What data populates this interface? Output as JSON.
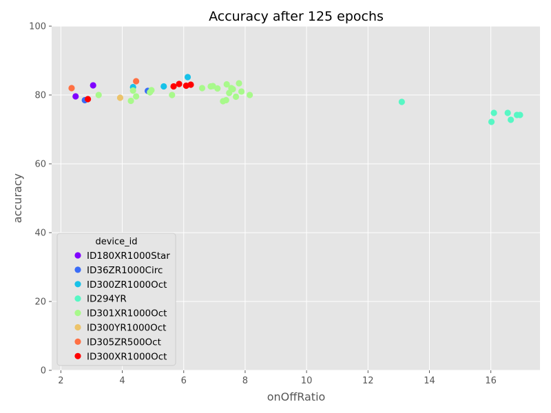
{
  "chart_data": {
    "type": "scatter",
    "title": "Accuracy after 125 epochs",
    "xlabel": "onOffRatio",
    "ylabel": "accuracy",
    "xlim": [
      1.7,
      17.6
    ],
    "ylim": [
      0,
      100
    ],
    "xticks": [
      "2",
      "4",
      "6",
      "8",
      "10",
      "12",
      "14",
      "16"
    ],
    "xtick_values": [
      2,
      4,
      6,
      8,
      10,
      12,
      14,
      16
    ],
    "yticks": [
      "0",
      "20",
      "40",
      "60",
      "80",
      "100"
    ],
    "ytick_values": [
      0,
      20,
      40,
      60,
      80,
      100
    ],
    "grid": true,
    "background": "#e5e5e5",
    "grid_color": "#ffffff",
    "legend": {
      "title": "device_id",
      "placement": "lower-left"
    },
    "series": [
      {
        "name": "ID180XR1000Star",
        "color": "#8000ff",
        "points": [
          [
            2.48,
            79.6
          ],
          [
            3.05,
            82.8
          ]
        ]
      },
      {
        "name": "ID36ZR1000Circ",
        "color": "#3a6cf7",
        "points": [
          [
            2.78,
            78.5
          ],
          [
            4.83,
            81.2
          ]
        ]
      },
      {
        "name": "ID300ZR1000Oct",
        "color": "#17c1e8",
        "points": [
          [
            4.35,
            82.3
          ],
          [
            5.35,
            82.5
          ],
          [
            6.13,
            85.2
          ]
        ]
      },
      {
        "name": "ID294YR",
        "color": "#57f7c4",
        "points": [
          [
            13.1,
            78.0
          ],
          [
            16.02,
            72.2
          ],
          [
            16.1,
            74.8
          ],
          [
            16.55,
            74.8
          ],
          [
            16.65,
            72.8
          ],
          [
            16.85,
            74.2
          ],
          [
            16.95,
            74.2
          ]
        ]
      },
      {
        "name": "ID301XR1000Oct",
        "color": "#a8f98b",
        "points": [
          [
            3.23,
            80.0
          ],
          [
            4.28,
            78.3
          ],
          [
            4.35,
            81.3
          ],
          [
            4.45,
            79.6
          ],
          [
            4.9,
            80.8
          ],
          [
            4.95,
            81.4
          ],
          [
            5.62,
            80.0
          ],
          [
            6.6,
            82.0
          ],
          [
            6.88,
            82.5
          ],
          [
            6.95,
            82.6
          ],
          [
            7.1,
            81.9
          ],
          [
            7.28,
            78.2
          ],
          [
            7.38,
            78.5
          ],
          [
            7.4,
            83.1
          ],
          [
            7.48,
            80.6
          ],
          [
            7.55,
            82.0
          ],
          [
            7.6,
            81.7
          ],
          [
            7.7,
            79.5
          ],
          [
            7.8,
            83.4
          ],
          [
            7.88,
            81.0
          ],
          [
            8.15,
            80.0
          ]
        ]
      },
      {
        "name": "ID300YR1000Oct",
        "color": "#ecc36a",
        "points": [
          [
            3.93,
            79.2
          ]
        ]
      },
      {
        "name": "ID305ZR500Oct",
        "color": "#ff7043",
        "points": [
          [
            2.35,
            82.0
          ],
          [
            4.45,
            84.0
          ]
        ]
      },
      {
        "name": "ID300XR1000Oct",
        "color": "#ff0000",
        "points": [
          [
            2.88,
            78.8
          ],
          [
            5.67,
            82.5
          ],
          [
            5.85,
            83.2
          ],
          [
            6.08,
            82.7
          ],
          [
            6.23,
            83.0
          ]
        ]
      }
    ]
  }
}
